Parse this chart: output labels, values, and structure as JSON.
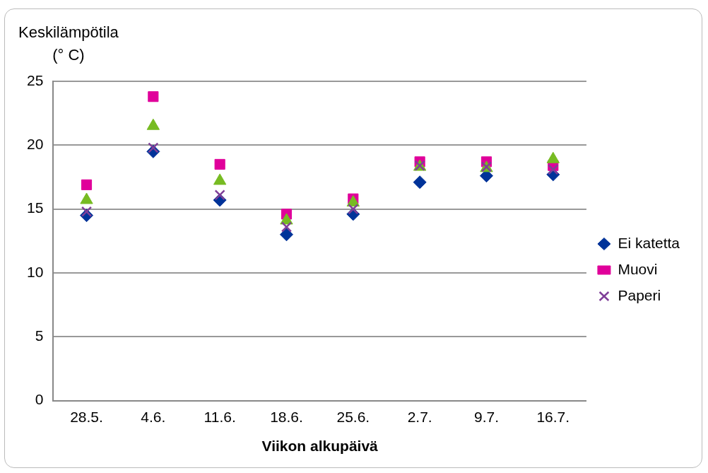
{
  "chart_data": {
    "type": "scatter",
    "ylabel": "Keskilämpötila\n(° C)",
    "xlabel": "Viikon alkupäivä",
    "categories": [
      "28.5.",
      "4.6.",
      "11.6.",
      "18.6.",
      "25.6.",
      "2.7.",
      "9.7.",
      "16.7."
    ],
    "series": [
      {
        "name": "Ei katetta",
        "color": "#003399",
        "marker": "diamond",
        "values": [
          14.5,
          19.5,
          15.7,
          13.0,
          14.6,
          17.1,
          17.6,
          17.7
        ]
      },
      {
        "name": "Muovi",
        "color": "#e0009a",
        "marker": "square",
        "values": [
          16.9,
          23.8,
          18.5,
          14.6,
          15.8,
          18.7,
          18.7,
          18.4
        ]
      },
      {
        "color": "#77bb22",
        "marker": "triangle",
        "values": [
          15.7,
          21.5,
          17.2,
          14.1,
          15.5,
          18.3,
          18.2,
          18.9
        ]
      },
      {
        "name": "Paperi",
        "color": "#7f3f98",
        "marker": "cross",
        "values": [
          14.8,
          19.8,
          16.1,
          13.6,
          15.0,
          18.4,
          18.3,
          18.1
        ]
      }
    ],
    "ylim": [
      0,
      25
    ],
    "yticks": [
      0,
      5,
      10,
      15,
      20,
      25
    ],
    "grid": "y",
    "legend": "right"
  }
}
